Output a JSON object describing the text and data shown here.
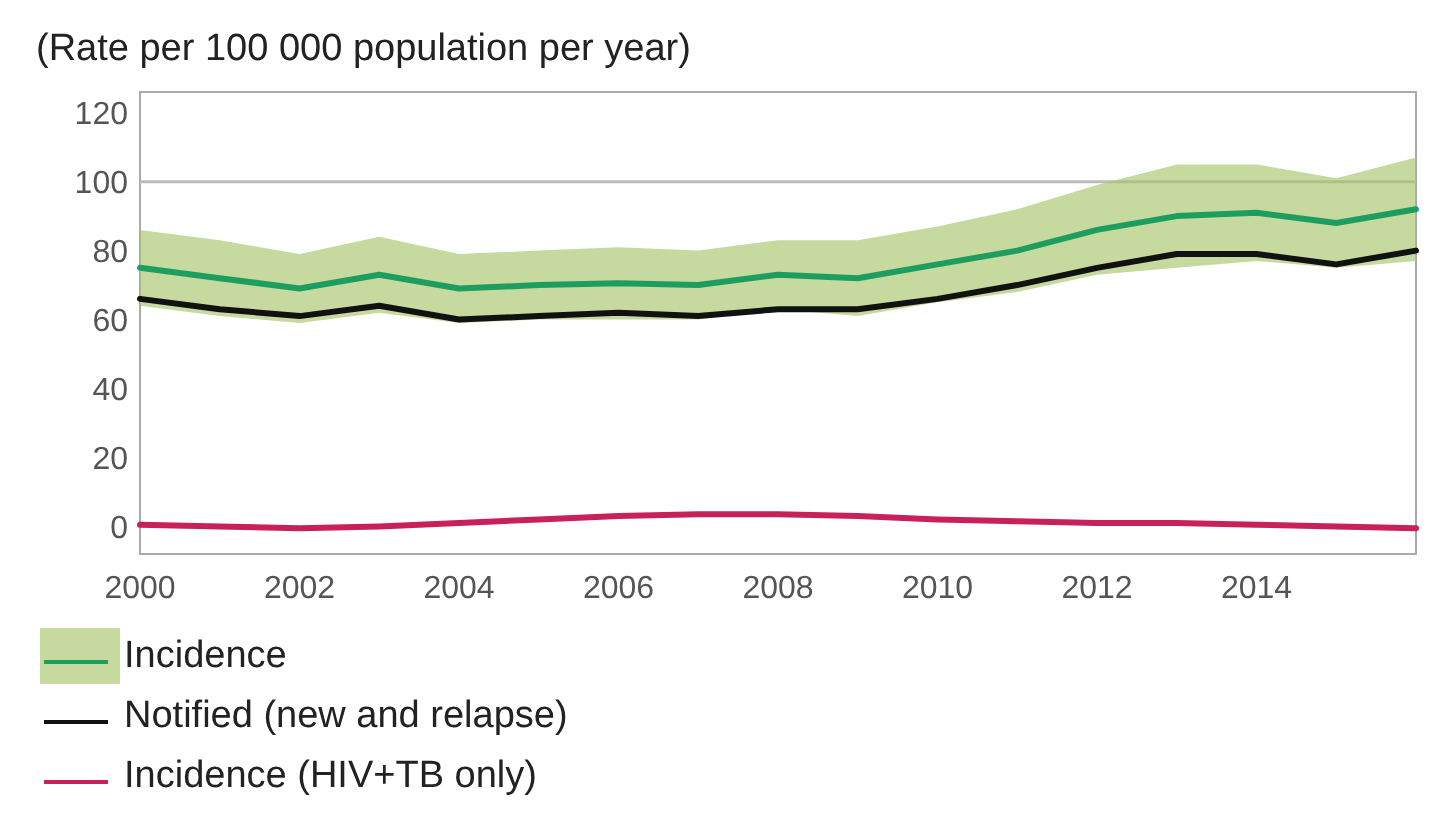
{
  "chart_data": {
    "type": "line",
    "title": "(Rate per 100 000 population per year)",
    "x": [
      2000,
      2001,
      2002,
      2003,
      2004,
      2005,
      2006,
      2007,
      2008,
      2009,
      2010,
      2011,
      2012,
      2013,
      2014,
      2015,
      2016
    ],
    "series": [
      {
        "name": "Incidence",
        "color": "#1e9e5e",
        "values": [
          75,
          72,
          69,
          73,
          69,
          70,
          70.5,
          70,
          73,
          72,
          76,
          80,
          86,
          90,
          91,
          88,
          92
        ],
        "lower": [
          64,
          61,
          59,
          62,
          59,
          60,
          60,
          60,
          63,
          61,
          65,
          68,
          73,
          75,
          77,
          75,
          77
        ],
        "upper": [
          86,
          83,
          79,
          84,
          79,
          80,
          81,
          80,
          83,
          83,
          87,
          92,
          99,
          105,
          105,
          101,
          107
        ]
      },
      {
        "name": "Notified (new and relapse)",
        "color": "#111111",
        "values": [
          66,
          63,
          61,
          64,
          60,
          61,
          62,
          61,
          63,
          63,
          66,
          70,
          75,
          79,
          79,
          76,
          80
        ]
      },
      {
        "name": "Incidence (HIV+TB only)",
        "color": "#c8205a",
        "values": [
          0.5,
          0,
          -0.5,
          0,
          1,
          2,
          3,
          3.5,
          3.5,
          3,
          2,
          1.5,
          1,
          1,
          0.5,
          0,
          -0.5
        ]
      }
    ],
    "xlim": [
      2000,
      2016
    ],
    "xticks": [
      2000,
      2002,
      2004,
      2006,
      2008,
      2010,
      2012,
      2014
    ],
    "ylim": [
      -8,
      126
    ],
    "yticks": [
      0,
      20,
      40,
      60,
      80,
      100,
      120
    ],
    "ref_lines": [
      {
        "axis": "y",
        "value": 100,
        "color": "#bbbbbb"
      }
    ],
    "legend": "bottom",
    "marker": "none",
    "line_style": "solid",
    "grid": false
  }
}
